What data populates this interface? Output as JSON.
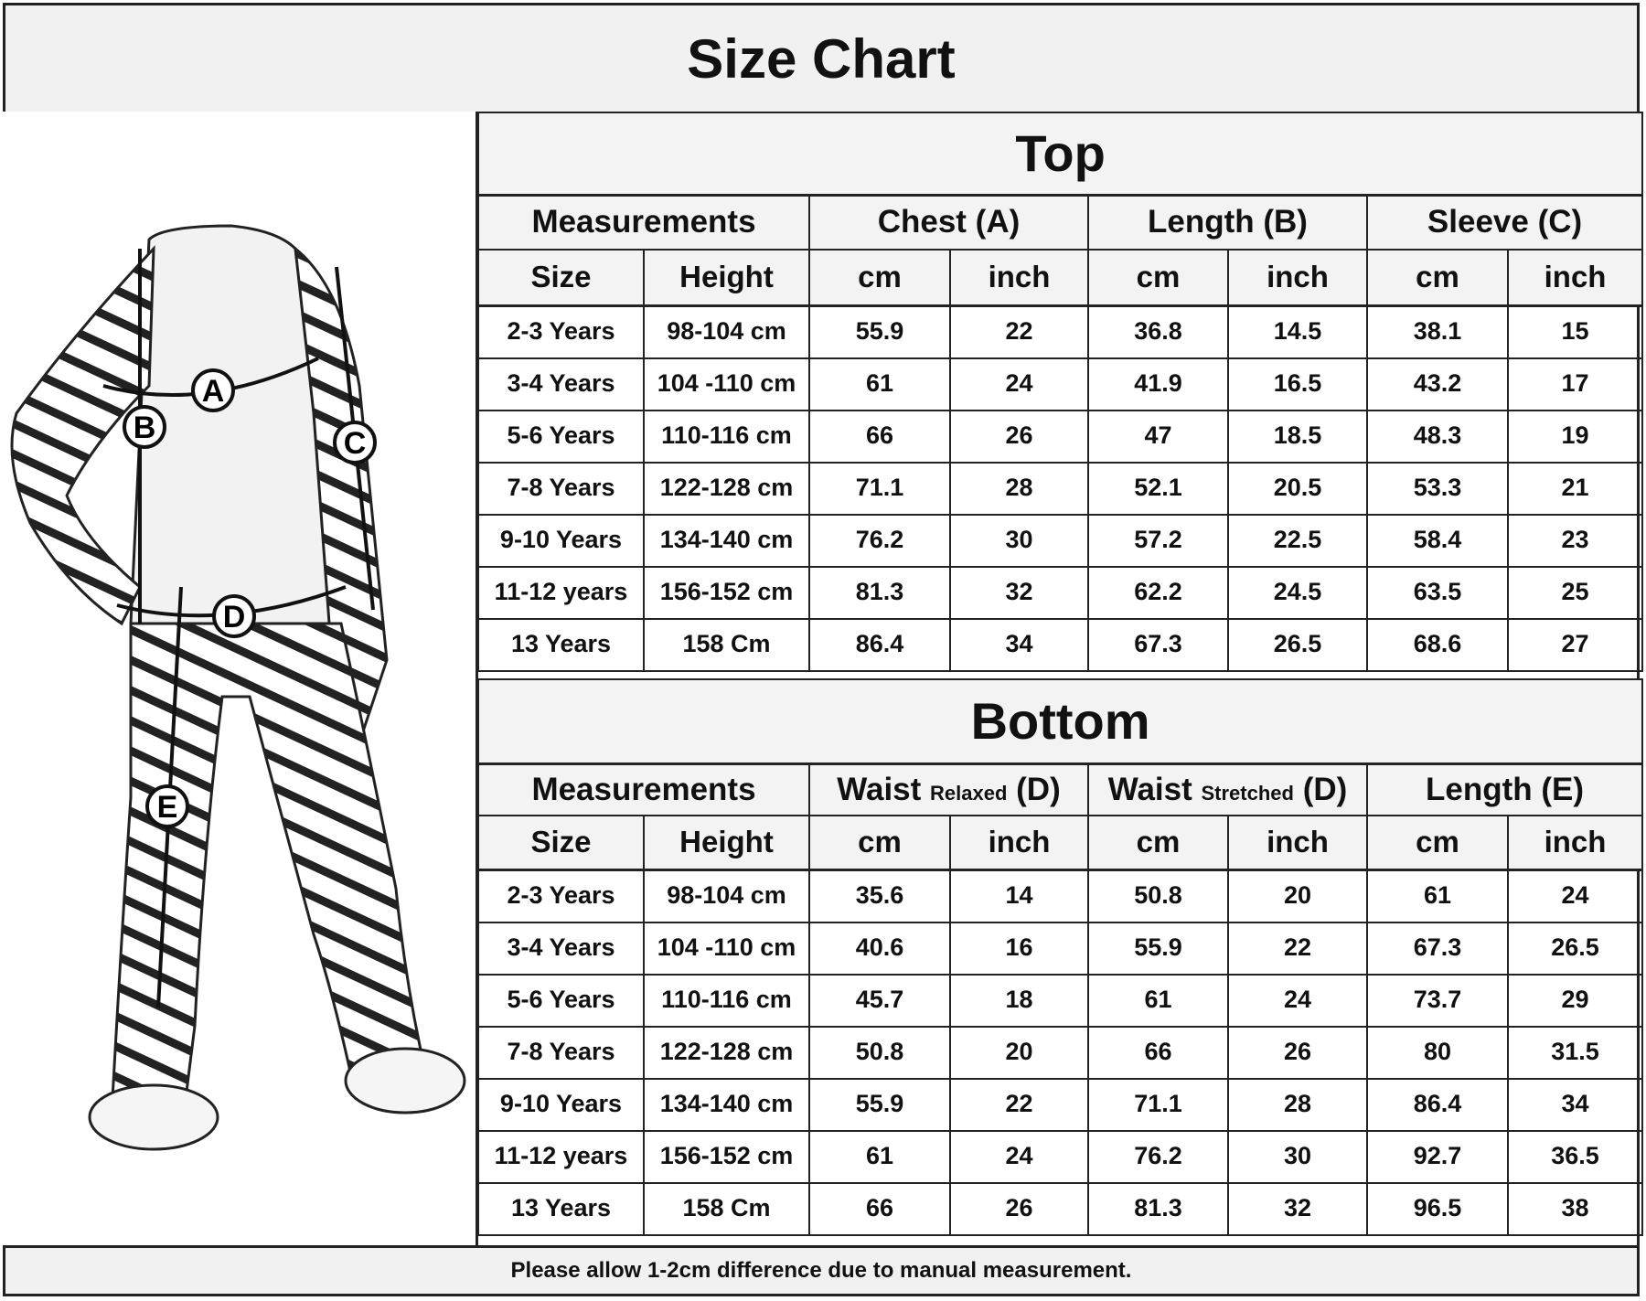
{
  "title": "Size Chart",
  "figure": {
    "labels": [
      "A",
      "B",
      "C",
      "D",
      "E"
    ]
  },
  "top": {
    "title": "Top",
    "groups": [
      "Measurements",
      "Chest (A)",
      "Length (B)",
      "Sleeve (C)"
    ],
    "subheaders": [
      "Size",
      "Height",
      "cm",
      "inch",
      "cm",
      "inch",
      "cm",
      "inch"
    ],
    "rows": [
      [
        "2-3 Years",
        "98-104 cm",
        "55.9",
        "22",
        "36.8",
        "14.5",
        "38.1",
        "15"
      ],
      [
        "3-4 Years",
        "104 -110 cm",
        "61",
        "24",
        "41.9",
        "16.5",
        "43.2",
        "17"
      ],
      [
        "5-6 Years",
        "110-116 cm",
        "66",
        "26",
        "47",
        "18.5",
        "48.3",
        "19"
      ],
      [
        "7-8 Years",
        "122-128 cm",
        "71.1",
        "28",
        "52.1",
        "20.5",
        "53.3",
        "21"
      ],
      [
        "9-10 Years",
        "134-140 cm",
        "76.2",
        "30",
        "57.2",
        "22.5",
        "58.4",
        "23"
      ],
      [
        "11-12 years",
        "156-152 cm",
        "81.3",
        "32",
        "62.2",
        "24.5",
        "63.5",
        "25"
      ],
      [
        "13 Years",
        "158 Cm",
        "86.4",
        "34",
        "67.3",
        "26.5",
        "68.6",
        "27"
      ]
    ]
  },
  "bottom": {
    "title": "Bottom",
    "groups": [
      {
        "main": "Measurements",
        "small": "",
        "suffix": ""
      },
      {
        "main": "Waist ",
        "small": "Relaxed",
        "suffix": " (D)"
      },
      {
        "main": "Waist ",
        "small": "Stretched",
        "suffix": " (D)"
      },
      {
        "main": "Length (E)",
        "small": "",
        "suffix": ""
      }
    ],
    "subheaders": [
      "Size",
      "Height",
      "cm",
      "inch",
      "cm",
      "inch",
      "cm",
      "inch"
    ],
    "rows": [
      [
        "2-3 Years",
        "98-104 cm",
        "35.6",
        "14",
        "50.8",
        "20",
        "61",
        "24"
      ],
      [
        "3-4 Years",
        "104 -110 cm",
        "40.6",
        "16",
        "55.9",
        "22",
        "67.3",
        "26.5"
      ],
      [
        "5-6 Years",
        "110-116 cm",
        "45.7",
        "18",
        "61",
        "24",
        "73.7",
        "29"
      ],
      [
        "7-8 Years",
        "122-128 cm",
        "50.8",
        "20",
        "66",
        "26",
        "80",
        "31.5"
      ],
      [
        "9-10 Years",
        "134-140 cm",
        "55.9",
        "22",
        "71.1",
        "28",
        "86.4",
        "34"
      ],
      [
        "11-12 years",
        "156-152 cm",
        "61",
        "24",
        "76.2",
        "30",
        "92.7",
        "36.5"
      ],
      [
        "13 Years",
        "158 Cm",
        "66",
        "26",
        "81.3",
        "32",
        "96.5",
        "38"
      ]
    ]
  },
  "footer": "Please allow 1-2cm difference due to manual measurement."
}
